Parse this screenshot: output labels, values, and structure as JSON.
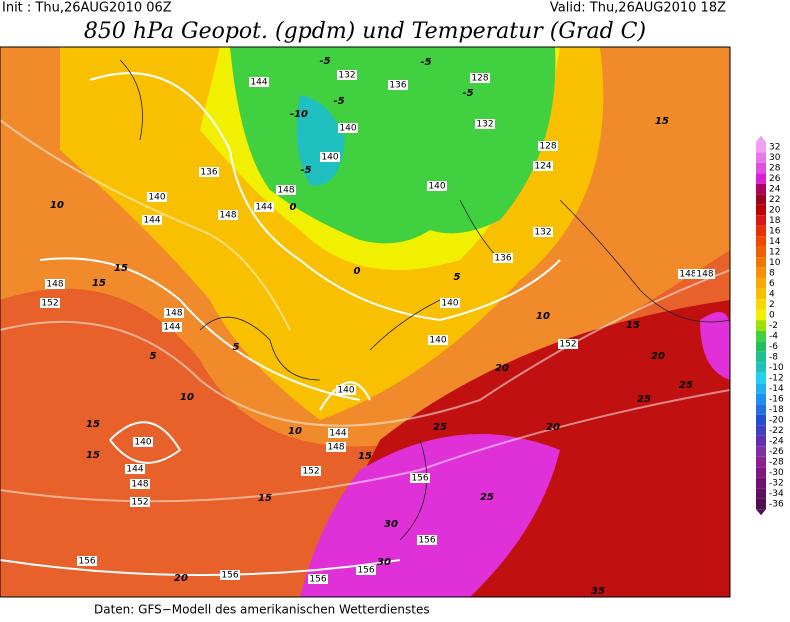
{
  "header": {
    "init": "Init : Thu,26AUG2010 06Z",
    "valid": "Valid: Thu,26AUG2010 18Z",
    "title": "850 hPa Geopot. (gpdm) und Temperatur (Grad C)"
  },
  "footer": "Daten: GFS−Modell des amerikanischen Wetterdienstes",
  "colorbar": {
    "levels": [
      32,
      30,
      28,
      26,
      24,
      22,
      20,
      18,
      16,
      14,
      12,
      10,
      8,
      6,
      4,
      2,
      0,
      -2,
      -4,
      -6,
      -8,
      -10,
      -12,
      -14,
      -16,
      -18,
      -20,
      -22,
      -24,
      -26,
      -28,
      -30,
      -32,
      -34,
      -36
    ],
    "colors": [
      "#f0a0f0",
      "#e878e8",
      "#e050e0",
      "#d820d8",
      "#b00060",
      "#a00020",
      "#c00000",
      "#d81818",
      "#e83000",
      "#f04800",
      "#f06000",
      "#f07800",
      "#f89000",
      "#f8a800",
      "#f8c000",
      "#f8d800",
      "#f0f000",
      "#a0e000",
      "#40d040",
      "#20c060",
      "#20c090",
      "#20c0c0",
      "#20d0f0",
      "#20b0f0",
      "#2090f0",
      "#2070e0",
      "#2050d0",
      "#4040c0",
      "#6030b0",
      "#8030a0",
      "#902090",
      "#801880",
      "#701070",
      "#601060",
      "#501050"
    ]
  },
  "geopotential_labels": [
    136,
    132,
    128,
    132,
    144,
    140,
    140,
    136,
    140,
    144,
    148,
    144,
    148,
    140,
    128,
    124,
    132,
    136,
    140,
    140,
    148,
    152,
    148,
    144,
    140,
    144,
    148,
    152,
    140,
    144,
    148,
    152,
    156,
    156,
    156,
    156,
    156,
    156,
    152,
    148,
    148
  ],
  "temperature_labels": [
    15,
    15,
    15,
    10,
    10,
    10,
    10,
    15,
    15,
    15,
    15,
    15,
    20,
    20,
    25,
    25,
    25,
    30,
    30,
    20,
    5,
    5,
    0,
    0,
    5,
    20,
    25,
    35,
    -5,
    -5,
    -10,
    -5,
    -5,
    -5
  ]
}
